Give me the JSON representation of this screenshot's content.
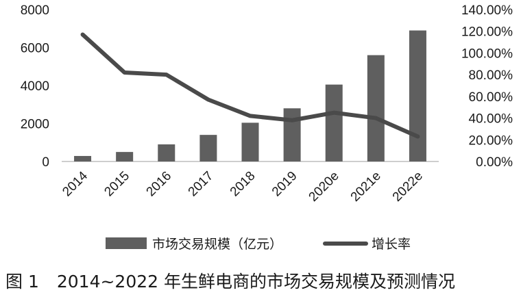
{
  "chart_data": {
    "type": "bar+line",
    "categories": [
      "2014",
      "2015",
      "2016",
      "2017",
      "2018",
      "2019",
      "2020e",
      "2021e",
      "2022e"
    ],
    "series": [
      {
        "name": "市场交易规模（亿元）",
        "type": "bar",
        "axis": "left",
        "values": [
          290,
          500,
          900,
          1400,
          2040,
          2800,
          4050,
          5600,
          6900
        ]
      },
      {
        "name": "增长率",
        "type": "line",
        "axis": "right",
        "values": [
          117,
          82,
          80,
          57,
          42,
          38,
          45,
          40,
          23
        ]
      }
    ],
    "y_left": {
      "ylim": [
        0,
        8000
      ],
      "ticks": [
        "0",
        "2000",
        "4000",
        "6000",
        "8000"
      ]
    },
    "y_right": {
      "ylim": [
        0,
        140
      ],
      "ticks": [
        "0.00%",
        "20.00%",
        "40.00%",
        "60.00%",
        "80.00%",
        "100.00%",
        "120.00%",
        "140.00%"
      ]
    },
    "grid": false,
    "legend": "bottom",
    "colors": {
      "bar": "#5f5f5f",
      "line": "#4a4a4a",
      "axis": "#bdbdbd",
      "text": "#1a1a1a"
    }
  },
  "caption": {
    "figure_label": "图 1",
    "text": "2014~2022 年生鲜电商的市场交易规模及预测情况"
  }
}
